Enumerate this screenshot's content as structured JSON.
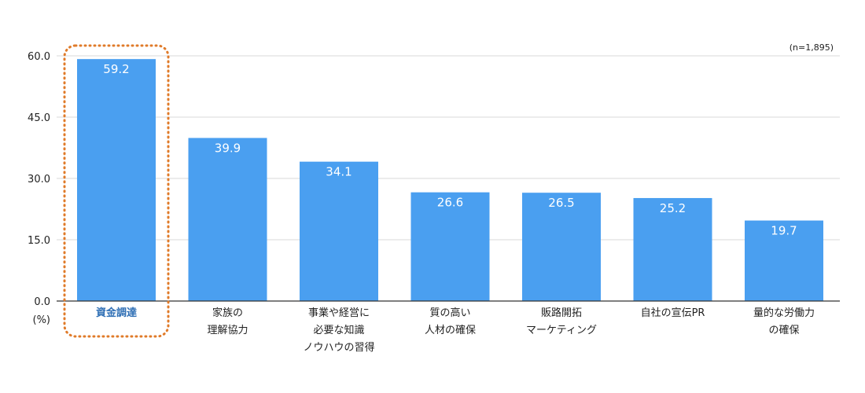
{
  "chart_data": {
    "type": "bar",
    "categories": [
      [
        "資金調達"
      ],
      [
        "家族の",
        "理解協力"
      ],
      [
        "事業や経営に",
        "必要な知識",
        "ノウハウの習得"
      ],
      [
        "質の高い",
        "人材の確保"
      ],
      [
        "販路開拓",
        "マーケティング"
      ],
      [
        "自社の宣伝PR"
      ],
      [
        "量的な労働力",
        "の確保"
      ]
    ],
    "values": [
      59.2,
      39.9,
      34.1,
      26.6,
      26.5,
      25.2,
      19.7
    ],
    "value_labels": [
      "59.2",
      "39.9",
      "34.1",
      "26.6",
      "26.5",
      "25.2",
      "19.7"
    ],
    "ylim": [
      0,
      60
    ],
    "yticks": [
      0,
      15,
      30,
      45,
      60
    ],
    "ytick_labels": [
      "0.0",
      "15.0",
      "30.0",
      "45.0",
      "60.0"
    ],
    "y_unit": "(%)",
    "note": "(n=1,895)",
    "grid": true,
    "highlight_index": 0,
    "colors": {
      "bar": "#4a9ff0",
      "highlight_box": "#e07b2a",
      "highlight_text": "#2f6fb5"
    }
  }
}
